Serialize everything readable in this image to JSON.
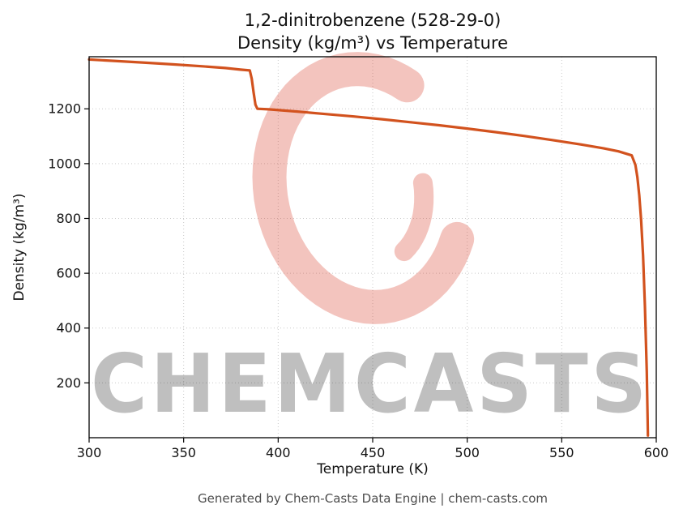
{
  "title_line1": "1,2-dinitrobenzene (528-29-0)",
  "title_line2": "Density (kg/m³) vs Temperature",
  "footer": "Generated by Chem-Casts Data Engine | chem-casts.com",
  "watermark": {
    "text": "CHEMCASTS",
    "color": "#d63c28"
  },
  "chart_data": {
    "type": "line",
    "title": "1,2-dinitrobenzene (528-29-0) — Density (kg/m³) vs Temperature",
    "xlabel": "Temperature (K)",
    "ylabel": "Density (kg/m³)",
    "xlim": [
      300,
      600
    ],
    "ylim": [
      0,
      1390
    ],
    "xticks": [
      300,
      350,
      400,
      450,
      500,
      550,
      600
    ],
    "yticks": [
      200,
      400,
      600,
      800,
      1000,
      1200
    ],
    "grid": true,
    "legend": "none",
    "line_color": "#d2521e",
    "series": [
      {
        "name": "density",
        "points": [
          [
            300,
            1380
          ],
          [
            315,
            1374
          ],
          [
            330,
            1368
          ],
          [
            345,
            1362
          ],
          [
            360,
            1355
          ],
          [
            372,
            1349
          ],
          [
            380,
            1343
          ],
          [
            385,
            1340
          ],
          [
            386,
            1310
          ],
          [
            387,
            1260
          ],
          [
            388,
            1215
          ],
          [
            389,
            1200
          ],
          [
            395,
            1198
          ],
          [
            410,
            1190
          ],
          [
            425,
            1181
          ],
          [
            440,
            1172
          ],
          [
            455,
            1162
          ],
          [
            470,
            1151
          ],
          [
            485,
            1140
          ],
          [
            500,
            1128
          ],
          [
            515,
            1115
          ],
          [
            530,
            1101
          ],
          [
            545,
            1086
          ],
          [
            560,
            1070
          ],
          [
            572,
            1056
          ],
          [
            580,
            1045
          ],
          [
            587,
            1030
          ],
          [
            589,
            995
          ],
          [
            590,
            950
          ],
          [
            591,
            885
          ],
          [
            592,
            795
          ],
          [
            593,
            665
          ],
          [
            594,
            480
          ],
          [
            595,
            240
          ],
          [
            595.6,
            8
          ]
        ]
      }
    ]
  }
}
